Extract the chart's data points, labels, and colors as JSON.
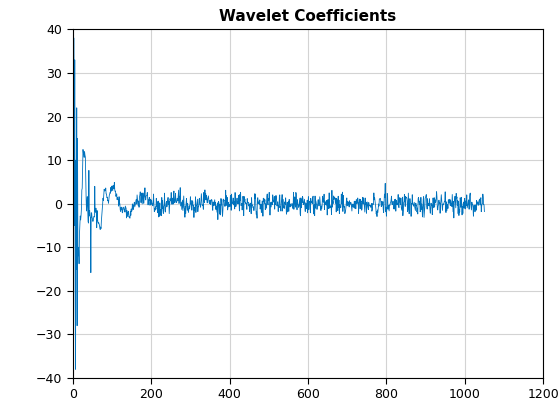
{
  "title": "Wavelet Coefficients",
  "title_fontsize": 11,
  "title_fontweight": "bold",
  "line_color": "#0072BD",
  "line_width": 0.6,
  "xlim": [
    0,
    1200
  ],
  "ylim": [
    -40,
    40
  ],
  "xticks": [
    0,
    200,
    400,
    600,
    800,
    1000,
    1200
  ],
  "yticks": [
    -40,
    -30,
    -20,
    -10,
    0,
    10,
    20,
    30,
    40
  ],
  "grid": true,
  "grid_color": "#D3D3D3",
  "background_color": "#FFFFFF",
  "n_points": 1050,
  "seed": 42
}
